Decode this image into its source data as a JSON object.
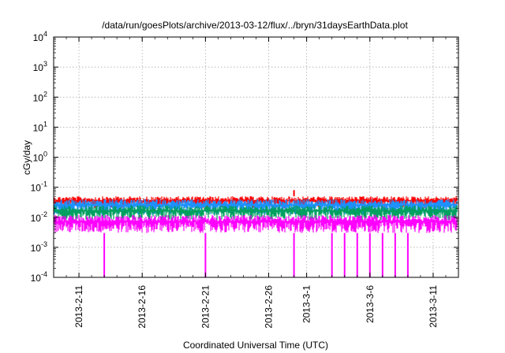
{
  "chart_data": {
    "type": "line",
    "title": "/data/run/goesPlots/archive/2013-03-12/flux/../bryn/31daysEarthData.plot",
    "xlabel": "Coordinated Universal Time (UTC)",
    "ylabel": "cGy/day",
    "yscale": "log",
    "ylim": [
      0.0001,
      10000
    ],
    "xlim": [
      "2013-02-09",
      "2013-03-13"
    ],
    "grid": true,
    "legend": "none",
    "y_ticks": [
      {
        "base": "10",
        "exp": "-4",
        "value": 0.0001
      },
      {
        "base": "10",
        "exp": "-3",
        "value": 0.001
      },
      {
        "base": "10",
        "exp": "-2",
        "value": 0.01
      },
      {
        "base": "10",
        "exp": "-1",
        "value": 0.1
      },
      {
        "base": "10",
        "exp": "0",
        "value": 1
      },
      {
        "base": "10",
        "exp": "1",
        "value": 10
      },
      {
        "base": "10",
        "exp": "2",
        "value": 100
      },
      {
        "base": "10",
        "exp": "3",
        "value": 1000
      },
      {
        "base": "10",
        "exp": "4",
        "value": 10000
      }
    ],
    "x_ticks": [
      {
        "label": "2013-2-11",
        "date": "2013-02-11"
      },
      {
        "label": "2013-2-16",
        "date": "2013-02-16"
      },
      {
        "label": "2013-2-21",
        "date": "2013-02-21"
      },
      {
        "label": "2013-2-26",
        "date": "2013-02-26"
      },
      {
        "label": "2013-3-1",
        "date": "2013-03-01"
      },
      {
        "label": "2013-3-6",
        "date": "2013-03-06"
      },
      {
        "label": "2013-3-11",
        "date": "2013-03-11"
      }
    ],
    "series": [
      {
        "color": "#ff0000",
        "typical_low": 0.02,
        "typical_high": 0.05,
        "peaks": [
          {
            "date": "2013-02-28",
            "value": 0.08
          }
        ]
      },
      {
        "color": "#1e90ff",
        "typical_low": 0.012,
        "typical_high": 0.04
      },
      {
        "color": "#00a060",
        "typical_low": 0.008,
        "typical_high": 0.025
      },
      {
        "color": "#ff00ff",
        "typical_low": 0.003,
        "typical_high": 0.012,
        "dropouts": [
          "2013-02-13",
          "2013-02-21",
          "2013-02-28",
          "2013-03-03",
          "2013-03-04",
          "2013-03-05",
          "2013-03-06",
          "2013-03-07",
          "2013-03-08",
          "2013-03-09"
        ]
      }
    ]
  }
}
